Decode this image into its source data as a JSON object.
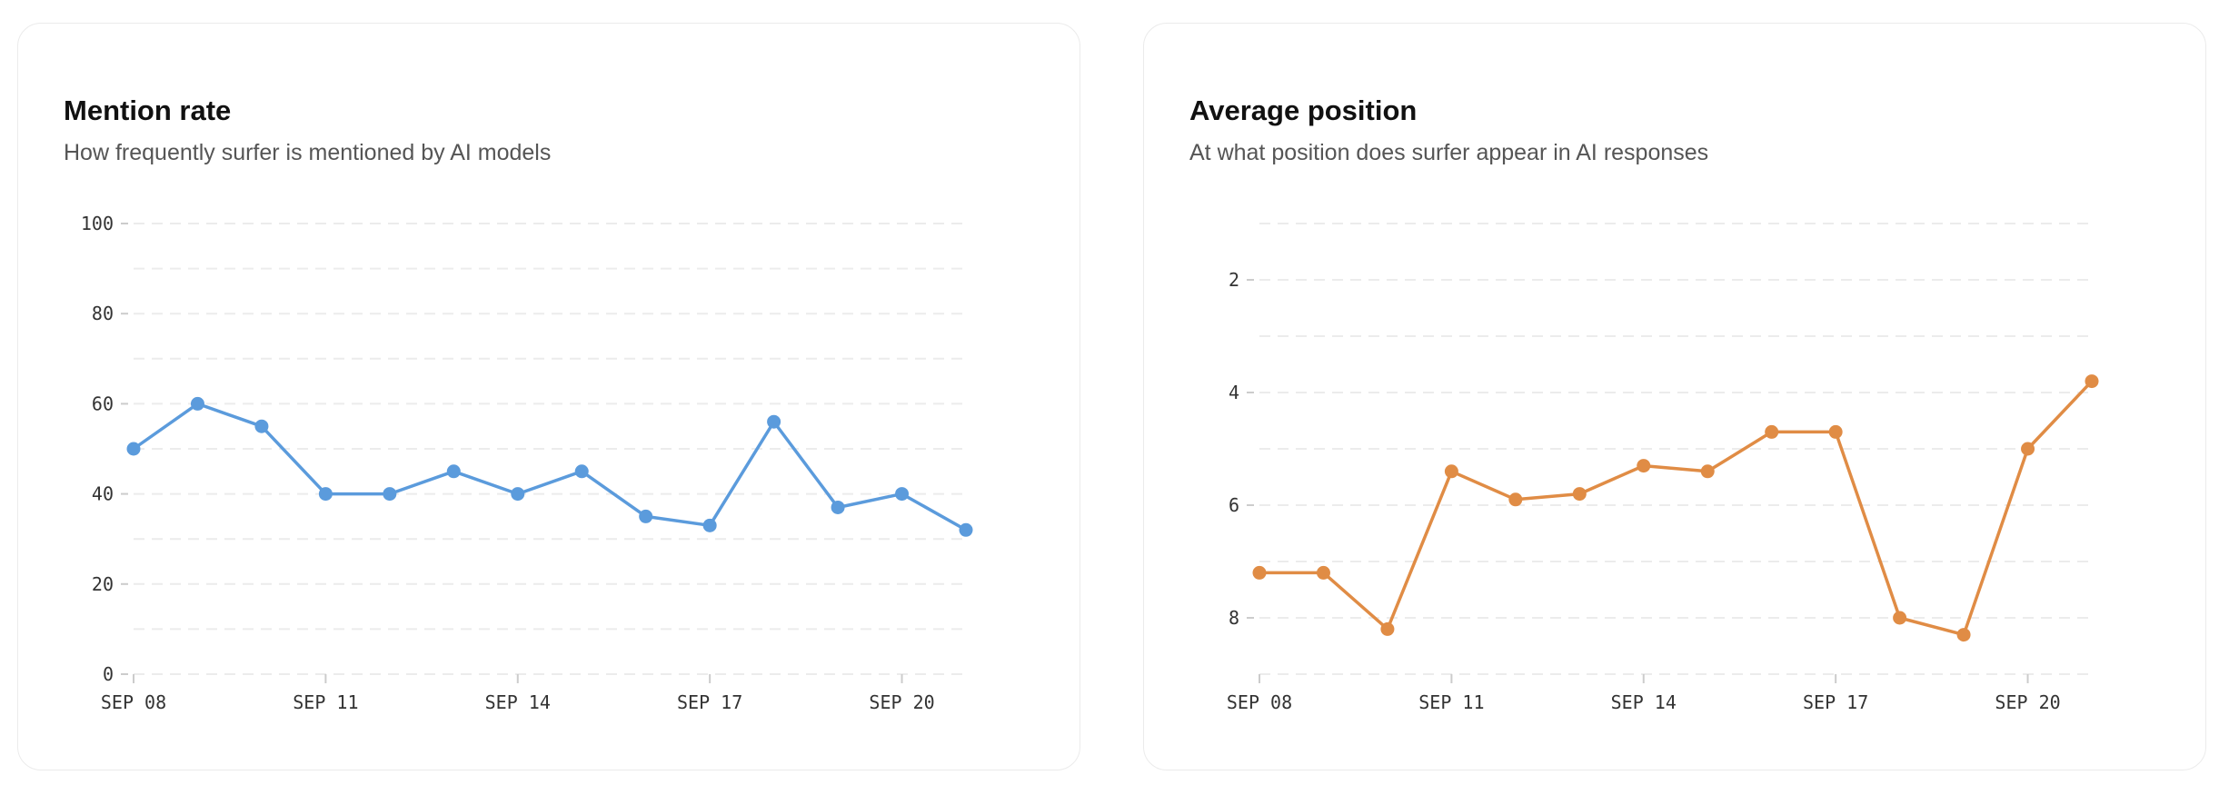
{
  "colors": {
    "mention": "#5b9bdc",
    "position": "#e08c45",
    "grid": "#ececec"
  },
  "chart_data": [
    {
      "type": "line",
      "title": "Mention rate",
      "subtitle": "How frequently surfer is mentioned by AI models",
      "x": [
        "SEP 08",
        "SEP 09",
        "SEP 10",
        "SEP 11",
        "SEP 12",
        "SEP 13",
        "SEP 14",
        "SEP 15",
        "SEP 16",
        "SEP 17",
        "SEP 18",
        "SEP 19",
        "SEP 20",
        "SEP 21"
      ],
      "x_tick_labels": [
        "SEP 08",
        "SEP 11",
        "SEP 14",
        "SEP 17",
        "SEP 20"
      ],
      "x_tick_index": [
        0,
        3,
        6,
        9,
        12
      ],
      "values": [
        50,
        60,
        55,
        40,
        40,
        45,
        40,
        45,
        35,
        33,
        56,
        37,
        40,
        32
      ],
      "ylim": [
        0,
        100
      ],
      "y_ticks": [
        "0",
        "20",
        "40",
        "60",
        "80",
        "100"
      ],
      "y_tick_values": [
        0,
        20,
        40,
        60,
        80,
        100
      ],
      "grid_step": 10,
      "grid": true,
      "reversed": false,
      "xlabel": "",
      "ylabel": ""
    },
    {
      "type": "line",
      "title": "Average position",
      "subtitle": "At what position does surfer appear in AI responses",
      "x": [
        "SEP 08",
        "SEP 09",
        "SEP 10",
        "SEP 11",
        "SEP 12",
        "SEP 13",
        "SEP 14",
        "SEP 15",
        "SEP 16",
        "SEP 17",
        "SEP 18",
        "SEP 19",
        "SEP 20",
        "SEP 21"
      ],
      "x_tick_labels": [
        "SEP 08",
        "SEP 11",
        "SEP 14",
        "SEP 17",
        "SEP 20"
      ],
      "x_tick_index": [
        0,
        3,
        6,
        9,
        12
      ],
      "values": [
        7.2,
        7.2,
        8.2,
        5.4,
        5.9,
        5.8,
        5.3,
        5.4,
        4.7,
        4.7,
        8.0,
        8.3,
        5.0,
        3.8
      ],
      "ylim": [
        1,
        9
      ],
      "y_ticks": [
        "2",
        "4",
        "6",
        "8"
      ],
      "y_tick_values": [
        2,
        4,
        6,
        8
      ],
      "grid_step": 1,
      "grid": true,
      "reversed": true,
      "xlabel": "",
      "ylabel": ""
    }
  ]
}
